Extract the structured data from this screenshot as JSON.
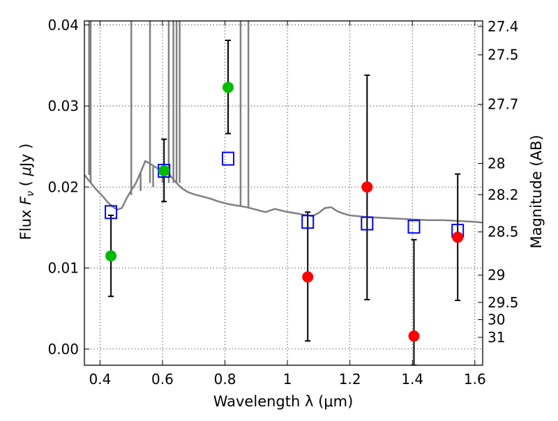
{
  "chart_data": {
    "type": "scatter",
    "xlabel": "Wavelength  λ (μm)",
    "ylabel": "Flux  Fν  ( μJy )",
    "y2label": "Magnitude (AB)",
    "xlim": [
      0.35,
      1.625
    ],
    "ylim": [
      -0.002,
      0.0405
    ],
    "xticks": [
      0.4,
      0.6,
      0.8,
      1.0,
      1.2,
      1.4,
      1.6
    ],
    "xtick_labels": [
      "0.4",
      "0.6",
      "0.8",
      "1",
      "1.2",
      "1.4",
      "1.6"
    ],
    "yticks": [
      0.0,
      0.01,
      0.02,
      0.03,
      0.04
    ],
    "ytick_labels": [
      "0.00",
      "0.01",
      "0.02",
      "0.03",
      "0.04"
    ],
    "y2ticks": [
      27.4,
      27.5,
      27.7,
      28,
      28.2,
      28.5,
      29,
      29.5,
      30,
      31
    ],
    "y2tick_labels": [
      "27.4",
      "27.5",
      "27.7",
      "28",
      "28.2",
      "28.5",
      "29",
      "29.5",
      "30",
      "31"
    ],
    "grid": true,
    "colors": {
      "green": "#00bb00",
      "red": "#ff0000",
      "blue": "#0000ff",
      "model": "#808080",
      "errorbar": "#000000"
    },
    "model_sed": {
      "x": [
        0.35,
        0.36,
        0.375,
        0.39,
        0.41,
        0.425,
        0.44,
        0.455,
        0.47,
        0.485,
        0.5,
        0.515,
        0.53,
        0.545,
        0.56,
        0.575,
        0.59,
        0.61,
        0.625,
        0.64,
        0.66,
        0.68,
        0.7,
        0.72,
        0.75,
        0.78,
        0.81,
        0.84,
        0.87,
        0.9,
        0.93,
        0.96,
        0.99,
        1.02,
        1.05,
        1.08,
        1.1,
        1.12,
        1.14,
        1.16,
        1.18,
        1.2,
        1.25,
        1.3,
        1.35,
        1.4,
        1.45,
        1.5,
        1.55,
        1.6,
        1.625
      ],
      "y": [
        0.0215,
        0.021,
        0.0203,
        0.0196,
        0.0188,
        0.0181,
        0.0176,
        0.0172,
        0.0174,
        0.0186,
        0.0196,
        0.0205,
        0.0218,
        0.0232,
        0.0229,
        0.0225,
        0.0222,
        0.0219,
        0.0214,
        0.0207,
        0.0199,
        0.0194,
        0.0191,
        0.0189,
        0.0186,
        0.0182,
        0.0179,
        0.0177,
        0.0175,
        0.0172,
        0.0169,
        0.0173,
        0.017,
        0.0168,
        0.0166,
        0.0164,
        0.0168,
        0.0174,
        0.0175,
        0.017,
        0.0167,
        0.0165,
        0.0163,
        0.0162,
        0.0161,
        0.016,
        0.0159,
        0.0159,
        0.0158,
        0.0157,
        0.0156
      ]
    },
    "model_spikes": [
      {
        "x": 0.365,
        "ymin": 0.0215,
        "ymax": 0.0405
      },
      {
        "x": 0.37,
        "ymin": 0.0205,
        "ymax": 0.0405
      },
      {
        "x": 0.5,
        "ymin": 0.019,
        "ymax": 0.0405
      },
      {
        "x": 0.56,
        "ymin": 0.0205,
        "ymax": 0.0405
      },
      {
        "x": 0.62,
        "ymin": 0.0205,
        "ymax": 0.0405
      },
      {
        "x": 0.635,
        "ymin": 0.0205,
        "ymax": 0.0405
      },
      {
        "x": 0.645,
        "ymin": 0.0205,
        "ymax": 0.0405
      },
      {
        "x": 0.655,
        "ymin": 0.0205,
        "ymax": 0.0405
      },
      {
        "x": 0.85,
        "ymin": 0.0177,
        "ymax": 0.0405
      },
      {
        "x": 0.875,
        "ymin": 0.0175,
        "ymax": 0.0405
      }
    ],
    "model_dips": [
      {
        "x": 0.53,
        "ymin": 0.0195
      },
      {
        "x": 0.57,
        "ymin": 0.02
      },
      {
        "x": 0.6,
        "ymin": 0.0205
      }
    ],
    "measured_green": [
      {
        "x": 0.435,
        "y": 0.0115,
        "err_low": 0.0065,
        "err_high": 0.0165
      },
      {
        "x": 0.605,
        "y": 0.022,
        "err_low": 0.0182,
        "err_high": 0.0259
      },
      {
        "x": 0.81,
        "y": 0.0323,
        "err_low": 0.0266,
        "err_high": 0.0381
      }
    ],
    "measured_red": [
      {
        "x": 1.065,
        "y": 0.0089,
        "err_low": 0.001,
        "err_high": 0.0169
      },
      {
        "x": 1.255,
        "y": 0.02,
        "err_low": 0.0061,
        "err_high": 0.0338
      },
      {
        "x": 1.405,
        "y": 0.0016,
        "err_low": -0.002,
        "err_high": 0.0135
      },
      {
        "x": 1.545,
        "y": 0.0138,
        "err_low": 0.006,
        "err_high": 0.0216
      }
    ],
    "model_bandflux_squares": [
      {
        "x": 0.435,
        "y": 0.0169
      },
      {
        "x": 0.605,
        "y": 0.022
      },
      {
        "x": 0.81,
        "y": 0.0235
      },
      {
        "x": 1.065,
        "y": 0.0157
      },
      {
        "x": 1.255,
        "y": 0.0155
      },
      {
        "x": 1.405,
        "y": 0.0151
      },
      {
        "x": 1.545,
        "y": 0.0146
      }
    ]
  }
}
